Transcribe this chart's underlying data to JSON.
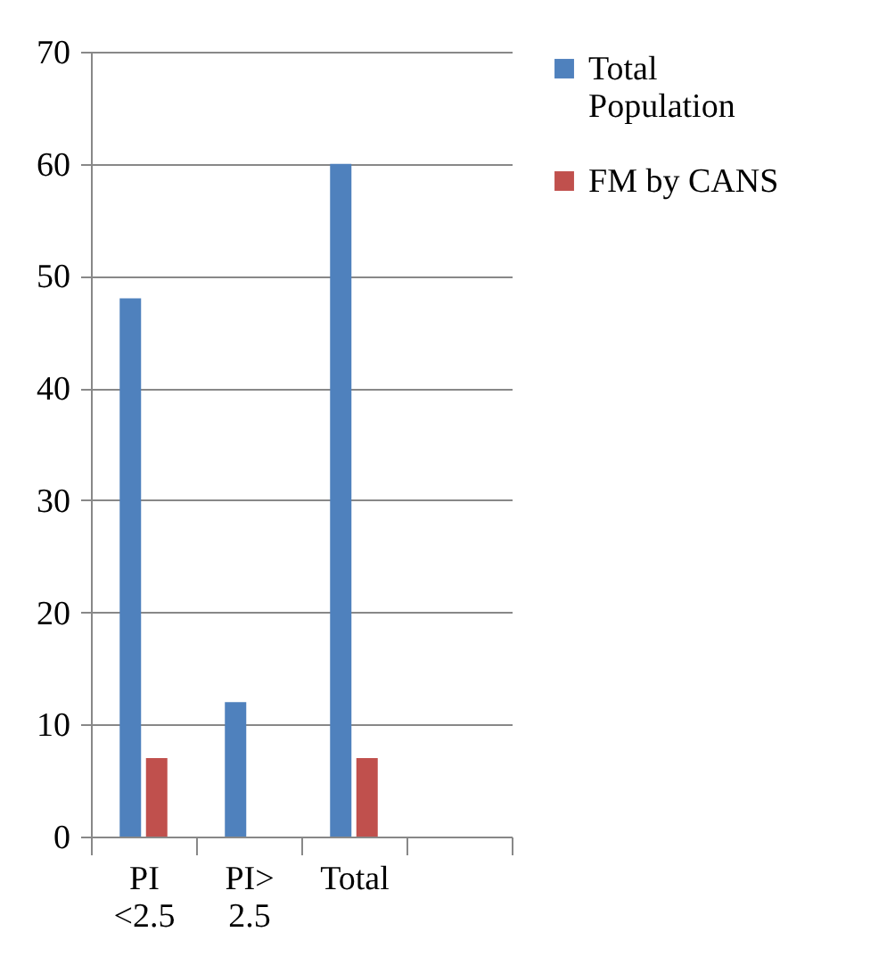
{
  "chart_data": {
    "type": "bar",
    "categories": [
      "PI <2.5",
      "PI> 2.5",
      "Total",
      null
    ],
    "series": [
      {
        "name": "Total Population",
        "color": "#4f81bd",
        "values": [
          48,
          12,
          60,
          null
        ]
      },
      {
        "name": "FM by CANS",
        "color": "#c0504d",
        "values": [
          7,
          null,
          7,
          null
        ]
      }
    ],
    "ylim": [
      0,
      70
    ],
    "yticks": [
      0,
      10,
      20,
      30,
      40,
      50,
      60,
      70
    ],
    "grid": "y",
    "legend": "right"
  }
}
